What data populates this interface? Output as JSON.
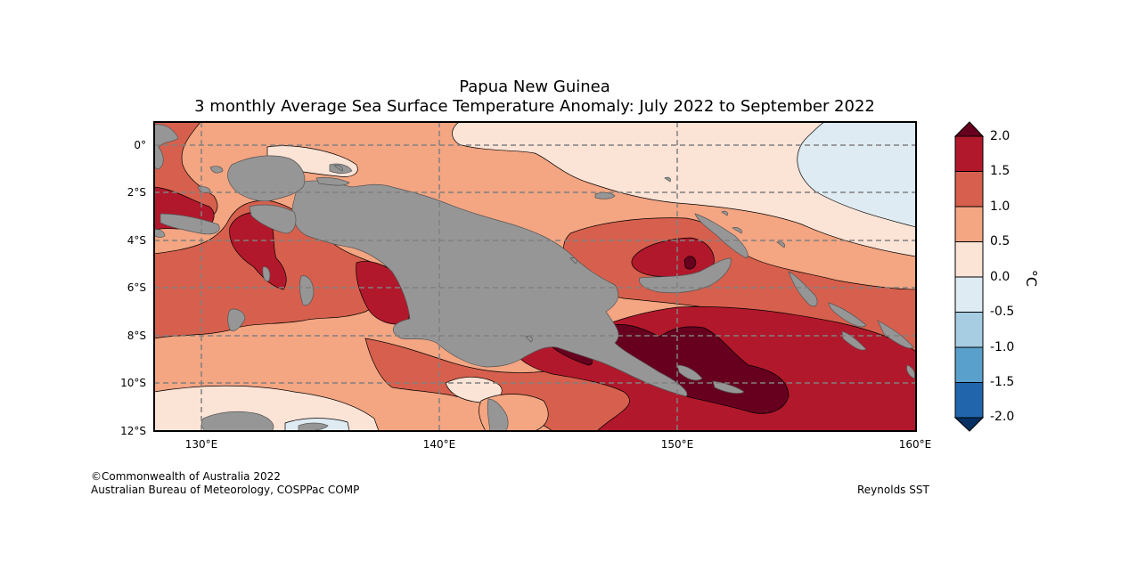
{
  "title": {
    "line1": "Papua New Guinea",
    "line2": "3 monthly Average Sea Surface Temperature Anomaly: July 2022 to September 2022"
  },
  "axes": {
    "y_ticks": [
      "0°",
      "2°S",
      "4°S",
      "6°S",
      "8°S",
      "10°S",
      "12°S"
    ],
    "x_ticks": [
      "130°E",
      "140°E",
      "150°E",
      "160°E"
    ],
    "lon_range": [
      128,
      160
    ],
    "lat_range": [
      1,
      -12
    ],
    "grid": "dashed"
  },
  "colorbar": {
    "unit": "°C",
    "labels": [
      "2.0",
      "1.5",
      "1.0",
      "0.5",
      "0.0",
      "-0.5",
      "-1.0",
      "-1.5",
      "-2.0"
    ],
    "colors": {
      "above_2": "#67001f",
      "1.5_2.0": "#b2182b",
      "1.0_1.5": "#d6604d",
      "0.5_1.0": "#f4a582",
      "0.0_0.5": "#fbe3d6",
      "-0.5_0.0": "#deebf2",
      "-1.0_-0.5": "#a6cde2",
      "-1.5_-1.0": "#5aa0cc",
      "-2.0_-1.5": "#2166ac",
      "below_-2": "#053061"
    },
    "land_color": "#969696"
  },
  "footer": {
    "copyright": "©Commonwealth of Australia 2022",
    "source": "Australian Bureau of Meteorology, COSPPac COMP",
    "dataset": "Reynolds SST"
  }
}
